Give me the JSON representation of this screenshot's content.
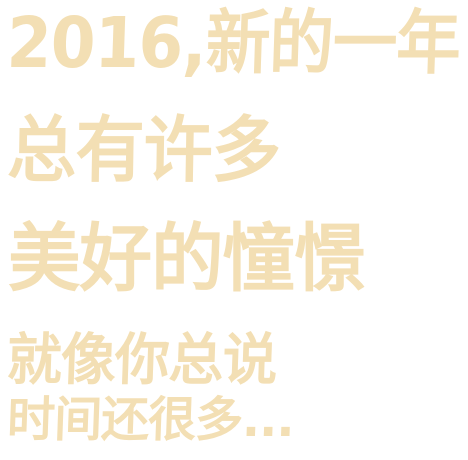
{
  "poem": {
    "lines": [
      "2016,新的一年",
      "总有许多",
      "美好的憧憬",
      "就像你总说",
      "时间还很多..."
    ],
    "color": "#f3dfb4"
  }
}
